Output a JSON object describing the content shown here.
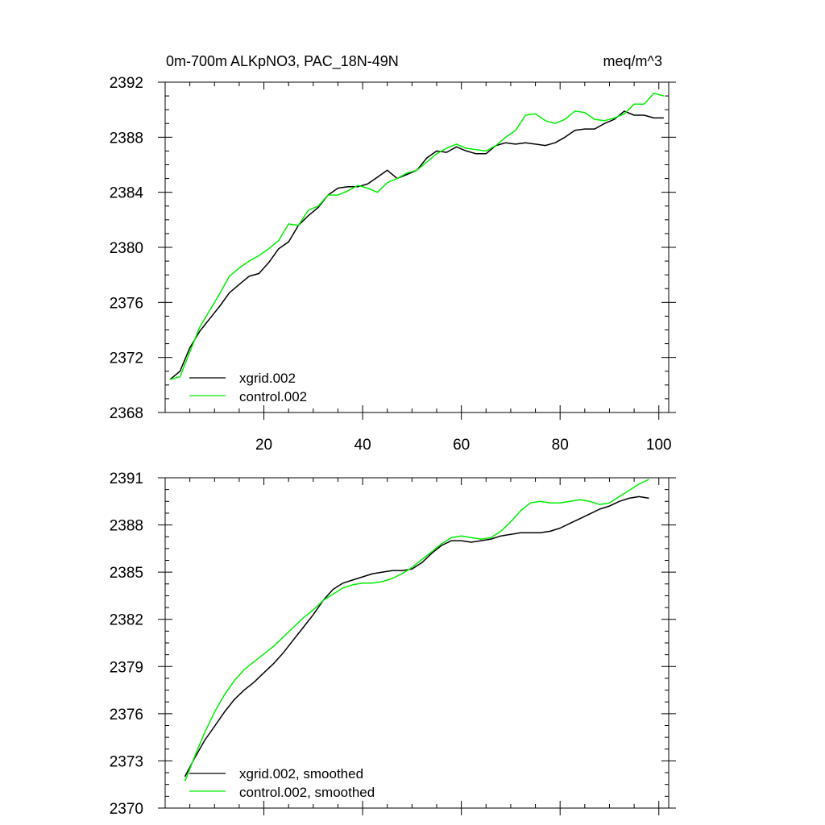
{
  "header": {
    "title": "0m-700m ALKpNO3, PAC_18N-49N",
    "units": "meq/m^3"
  },
  "colors": {
    "series_a": "#000000",
    "series_b": "#00ee00",
    "axis": "#000000"
  },
  "chart_data": [
    {
      "type": "line",
      "title": "0m-700m ALKpNO3, PAC_18N-49N",
      "units": "meq/m^3",
      "xlim": [
        0,
        102
      ],
      "ylim": [
        2368,
        2392
      ],
      "xticks": [
        20,
        40,
        60,
        80,
        100
      ],
      "yticks": [
        2368,
        2372,
        2376,
        2380,
        2384,
        2388,
        2392
      ],
      "grid": false,
      "legend": "bottom-left",
      "series": [
        {
          "name": "xgrid.002",
          "color": "#000000",
          "x": [
            1,
            3,
            5,
            7,
            9,
            11,
            13,
            15,
            17,
            19,
            21,
            23,
            25,
            27,
            29,
            31,
            33,
            35,
            37,
            39,
            41,
            43,
            45,
            47,
            49,
            51,
            53,
            55,
            57,
            59,
            61,
            63,
            65,
            67,
            69,
            71,
            73,
            75,
            77,
            79,
            81,
            83,
            85,
            87,
            89,
            91,
            93,
            95,
            97,
            99,
            101
          ],
          "y": [
            2370.4,
            2371.0,
            2372.7,
            2373.9,
            2374.8,
            2375.7,
            2376.7,
            2377.3,
            2377.9,
            2378.1,
            2378.9,
            2379.9,
            2380.4,
            2381.6,
            2382.3,
            2382.9,
            2383.8,
            2384.3,
            2384.4,
            2384.4,
            2384.6,
            2385.1,
            2385.6,
            2385.0,
            2385.3,
            2385.6,
            2386.5,
            2387.0,
            2386.9,
            2387.3,
            2387.0,
            2386.8,
            2386.8,
            2387.4,
            2387.6,
            2387.5,
            2387.6,
            2387.5,
            2387.4,
            2387.6,
            2388.0,
            2388.5,
            2388.6,
            2388.6,
            2389.0,
            2389.3,
            2389.9,
            2389.6,
            2389.6,
            2389.4,
            2389.4
          ]
        },
        {
          "name": "control.002",
          "color": "#00ee00",
          "x": [
            1,
            3,
            5,
            7,
            9,
            11,
            13,
            15,
            17,
            19,
            21,
            23,
            25,
            27,
            29,
            31,
            33,
            35,
            37,
            39,
            41,
            43,
            45,
            47,
            49,
            51,
            53,
            55,
            57,
            59,
            61,
            63,
            65,
            67,
            69,
            71,
            73,
            75,
            77,
            79,
            81,
            83,
            85,
            87,
            89,
            91,
            93,
            95,
            97,
            99,
            101
          ],
          "y": [
            2370.4,
            2370.6,
            2372.4,
            2374.2,
            2375.4,
            2376.6,
            2377.9,
            2378.5,
            2379.0,
            2379.4,
            2379.9,
            2380.5,
            2381.7,
            2381.6,
            2382.7,
            2383.0,
            2383.8,
            2383.8,
            2384.1,
            2384.5,
            2384.3,
            2384.0,
            2384.7,
            2385.0,
            2385.4,
            2385.6,
            2386.2,
            2386.8,
            2387.2,
            2387.5,
            2387.2,
            2387.1,
            2387.0,
            2387.4,
            2388.0,
            2388.5,
            2389.6,
            2389.7,
            2389.2,
            2389.0,
            2389.3,
            2389.9,
            2389.8,
            2389.3,
            2389.2,
            2389.4,
            2389.7,
            2390.4,
            2390.4,
            2391.2,
            2391.0
          ]
        }
      ]
    },
    {
      "type": "line",
      "title": "",
      "xlim": [
        0,
        102
      ],
      "ylim": [
        2370,
        2391
      ],
      "xticks": [
        20,
        40,
        60,
        80,
        100
      ],
      "yticks": [
        2370,
        2373,
        2376,
        2379,
        2382,
        2385,
        2388,
        2391
      ],
      "grid": false,
      "legend": "bottom-left",
      "series": [
        {
          "name": "xgrid.002, smoothed",
          "color": "#000000",
          "x": [
            4,
            6,
            8,
            10,
            12,
            14,
            16,
            18,
            20,
            22,
            24,
            26,
            28,
            30,
            32,
            34,
            36,
            38,
            40,
            42,
            44,
            46,
            48,
            50,
            52,
            54,
            56,
            58,
            60,
            62,
            64,
            66,
            68,
            70,
            72,
            74,
            76,
            78,
            80,
            82,
            84,
            86,
            88,
            90,
            92,
            94,
            96,
            98
          ],
          "y": [
            2372.0,
            2373.2,
            2374.3,
            2375.2,
            2376.1,
            2376.9,
            2377.5,
            2378.0,
            2378.6,
            2379.2,
            2379.9,
            2380.7,
            2381.5,
            2382.3,
            2383.2,
            2383.9,
            2384.3,
            2384.5,
            2384.7,
            2384.9,
            2385.0,
            2385.1,
            2385.1,
            2385.2,
            2385.6,
            2386.2,
            2386.7,
            2387.0,
            2387.0,
            2386.9,
            2387.0,
            2387.1,
            2387.3,
            2387.4,
            2387.5,
            2387.5,
            2387.5,
            2387.6,
            2387.8,
            2388.1,
            2388.4,
            2388.7,
            2389.0,
            2389.2,
            2389.5,
            2389.7,
            2389.8,
            2389.7
          ]
        },
        {
          "name": "control.002, smoothed",
          "color": "#00ee00",
          "x": [
            4,
            6,
            8,
            10,
            12,
            14,
            16,
            18,
            20,
            22,
            24,
            26,
            28,
            30,
            32,
            34,
            36,
            38,
            40,
            42,
            44,
            46,
            48,
            50,
            52,
            54,
            56,
            58,
            60,
            62,
            64,
            66,
            68,
            70,
            72,
            74,
            76,
            78,
            80,
            82,
            84,
            86,
            88,
            90,
            92,
            94,
            96,
            98
          ],
          "y": [
            2371.7,
            2373.3,
            2374.8,
            2376.1,
            2377.2,
            2378.1,
            2378.8,
            2379.3,
            2379.8,
            2380.3,
            2380.9,
            2381.5,
            2382.1,
            2382.6,
            2383.2,
            2383.6,
            2384.0,
            2384.2,
            2384.3,
            2384.3,
            2384.4,
            2384.6,
            2384.9,
            2385.3,
            2385.8,
            2386.3,
            2386.8,
            2387.2,
            2387.3,
            2387.2,
            2387.1,
            2387.2,
            2387.6,
            2388.2,
            2388.9,
            2389.4,
            2389.5,
            2389.4,
            2389.4,
            2389.5,
            2389.6,
            2389.5,
            2389.3,
            2389.4,
            2389.8,
            2390.2,
            2390.6,
            2390.9
          ]
        }
      ]
    }
  ]
}
